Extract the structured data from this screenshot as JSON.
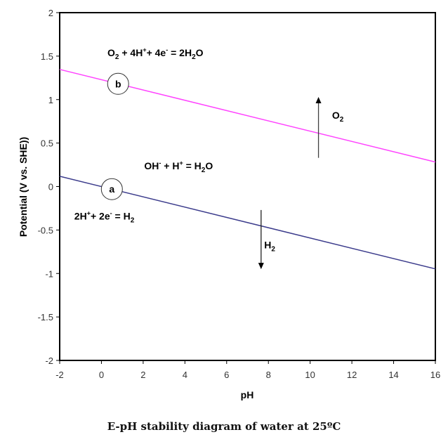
{
  "chart_data": {
    "type": "line",
    "title": "",
    "xlabel": "pH",
    "ylabel": "Potential (V vs. SHE))",
    "xlim": [
      -2,
      16
    ],
    "ylim": [
      -2,
      2
    ],
    "xticks": [
      -2,
      0,
      2,
      4,
      6,
      8,
      10,
      12,
      14,
      16
    ],
    "xtick_labels": [
      "-2",
      "0",
      "2",
      "4",
      "6",
      "8",
      "10",
      "12",
      "14",
      "16"
    ],
    "yticks": [
      2,
      1.5,
      1,
      0.5,
      0,
      -0.5,
      -1,
      -1.5,
      -2
    ],
    "ytick_labels": [
      "2",
      "1.5",
      "1",
      "0.5",
      "0",
      "-0.5",
      "-1",
      "-1.5",
      "-2"
    ],
    "grid": false,
    "series": [
      {
        "name": "b",
        "label": "b",
        "color": "#ff44ff",
        "x": [
          -2,
          16
        ],
        "y": [
          1.347,
          0.282
        ],
        "label_at_x": 0.8
      },
      {
        "name": "a",
        "label": "a",
        "color": "#3c3c8c",
        "x": [
          -2,
          16
        ],
        "y": [
          0.118,
          -0.947
        ],
        "label_at_x": 0.5
      }
    ],
    "arrows": [
      {
        "name": "O2",
        "x": 10.4,
        "y_from": 0.33,
        "y_to": 1.03,
        "direction": "up",
        "color": "#404040"
      },
      {
        "name": "H2",
        "x": 7.65,
        "y_from": -0.27,
        "y_to": -0.95,
        "direction": "down",
        "color": "#202020"
      }
    ],
    "annotations": {
      "eq_b": {
        "parts": [
          "O",
          "2",
          " + 4H",
          "+",
          "+ 4e",
          "-",
          " = 2H",
          "2",
          "O"
        ],
        "x": -2,
        "y": 1.5
      },
      "eq_mid": {
        "parts": [
          "OH",
          "-",
          " + H",
          "+",
          " = H",
          "2",
          "O"
        ],
        "x": 2.05,
        "y": 0.2
      },
      "eq_a": {
        "parts": [
          "2H",
          "+",
          "+ 2e",
          "-",
          " = H",
          "2"
        ],
        "x": -1.3,
        "y": -0.38
      },
      "arrow_label_o2": {
        "parts": [
          "O",
          "2"
        ],
        "x": 11.05,
        "y": 0.78
      },
      "arrow_label_h2": {
        "parts": [
          "H",
          "2"
        ],
        "x": 7.8,
        "y": -0.71
      }
    }
  },
  "caption": "E-pH stability diagram of water at 25ºC"
}
